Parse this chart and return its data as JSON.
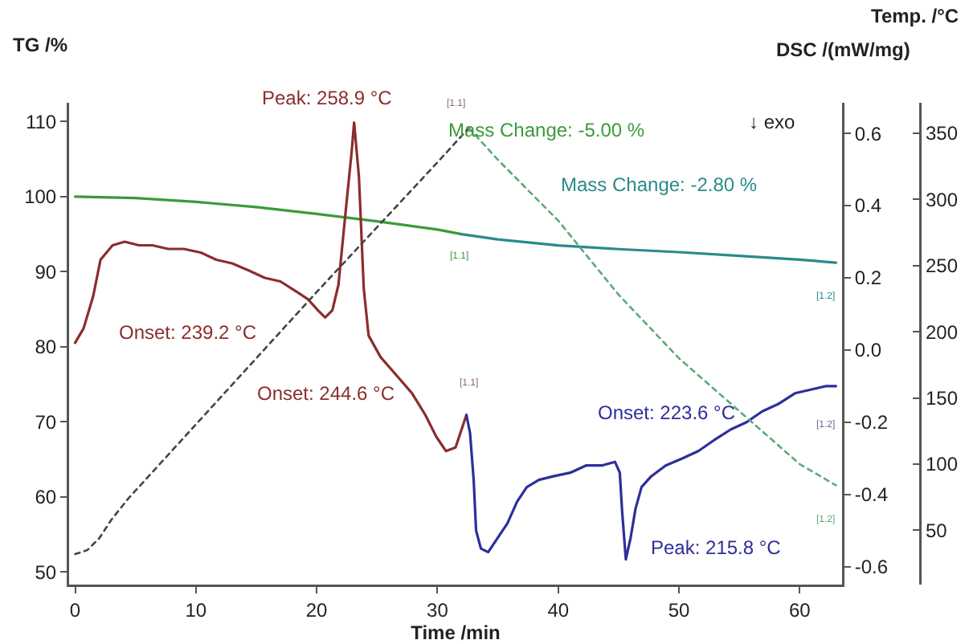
{
  "chart_data": {
    "type": "line",
    "xlabel": "Time /min",
    "ylabel": "TG /%",
    "y2label": "DSC /(mW/mg)",
    "y3label": "Temp. /°C",
    "xlim": [
      -0.5,
      63.5
    ],
    "xticks": [
      0,
      10,
      20,
      30,
      40,
      50,
      60
    ],
    "ylim": [
      48.3,
      112.5
    ],
    "yticks": [
      50,
      60,
      70,
      80,
      90,
      100,
      110
    ],
    "y2lim": [
      -0.65,
      0.685
    ],
    "y2ticks": [
      -0.6,
      -0.4,
      -0.2,
      {
        "value": 0,
        "label": "0.0"
      },
      0.2,
      0.4,
      0.6
    ],
    "y3lim": [
      9,
      373
    ],
    "y3ticks": [
      50,
      100,
      150,
      200,
      250,
      300,
      350
    ],
    "grid": false,
    "marker": "none",
    "series": [
      {
        "color": "#3a9a3a",
        "x": [
          0,
          5,
          10,
          15,
          20,
          25,
          30,
          32
        ],
        "values": [
          100,
          99.8,
          99.3,
          98.6,
          97.7,
          96.7,
          95.6,
          95.0
        ]
      },
      {
        "color": "#2a8a8a",
        "x": [
          32,
          35,
          40,
          45,
          50,
          55,
          60,
          63
        ],
        "values": [
          95.0,
          94.3,
          93.5,
          93.0,
          92.6,
          92.1,
          91.6,
          91.2
        ]
      },
      {
        "color": "#8b2d2d",
        "axis": "y2",
        "x": [
          0,
          0.7,
          1.5,
          2.1,
          3.1,
          4.1,
          5.3,
          6.4,
          7.7,
          9.0,
          10.4,
          11.7,
          13.0,
          14.4,
          15.7,
          17.0,
          18.4,
          19.3,
          20.1,
          20.7,
          21.3,
          21.8,
          22.3,
          22.9,
          23.1,
          23.5,
          23.9,
          24.3,
          25.3,
          26.6,
          27.9,
          29.0,
          29.9,
          30.7,
          31.5,
          32.2,
          32.4
        ],
        "values": [
          0.02,
          0.06,
          0.15,
          0.25,
          0.29,
          0.3,
          0.29,
          0.29,
          0.28,
          0.28,
          0.27,
          0.25,
          0.24,
          0.22,
          0.2,
          0.19,
          0.16,
          0.14,
          0.11,
          0.09,
          0.11,
          0.18,
          0.35,
          0.55,
          0.63,
          0.48,
          0.17,
          0.04,
          -0.02,
          -0.07,
          -0.12,
          -0.18,
          -0.24,
          -0.28,
          -0.27,
          -0.2,
          -0.18
        ]
      },
      {
        "color": "#2e2e9a",
        "axis": "y2",
        "x": [
          32.4,
          32.7,
          33.0,
          33.2,
          33.6,
          34.2,
          35.0,
          35.8,
          36.6,
          37.4,
          38.4,
          39.6,
          41.0,
          42.3,
          43.6,
          44.7,
          45.1,
          45.3,
          45.6,
          46.0,
          46.4,
          46.9,
          47.7,
          48.9,
          50.3,
          51.6,
          52.9,
          54.3,
          55.6,
          56.9,
          58.2,
          59.6,
          60.9,
          62.2,
          63.0
        ],
        "values": [
          -0.18,
          -0.23,
          -0.36,
          -0.5,
          -0.55,
          -0.56,
          -0.52,
          -0.48,
          -0.42,
          -0.38,
          -0.36,
          -0.35,
          -0.34,
          -0.32,
          -0.32,
          -0.31,
          -0.34,
          -0.45,
          -0.58,
          -0.52,
          -0.44,
          -0.38,
          -0.35,
          -0.32,
          -0.3,
          -0.28,
          -0.25,
          -0.22,
          -0.2,
          -0.17,
          -0.15,
          -0.12,
          -0.11,
          -0.1,
          -0.1
        ]
      },
      {
        "color": "#444444",
        "axis": "y3",
        "line_style": "dotted",
        "x": [
          0,
          1,
          2,
          3,
          4.4,
          10,
          15,
          20,
          25,
          30,
          32.6
        ],
        "values": [
          32,
          35,
          44,
          58,
          74,
          130,
          180,
          230,
          279,
          328,
          354
        ]
      },
      {
        "color": "#5aaa7a",
        "axis": "y3",
        "line_style": "dotted",
        "x": [
          32.6,
          35,
          40,
          45,
          50,
          55,
          60,
          63
        ],
        "values": [
          354,
          330,
          284,
          228,
          180,
          140,
          100,
          84
        ]
      }
    ],
    "annotations": [
      "Peak: 258.9 °C",
      "Onset: 239.2 °C",
      "Onset: 244.6 °C",
      "Mass Change: -5.00 %",
      "Mass Change: -2.80 %",
      "↓ exo",
      "Onset: 223.6 °C",
      "Peak: 215.8 °C",
      "[1.1]",
      "[1.1]",
      "[1.1]",
      "[1.2]",
      "[1.2]",
      "[1.2]"
    ]
  }
}
